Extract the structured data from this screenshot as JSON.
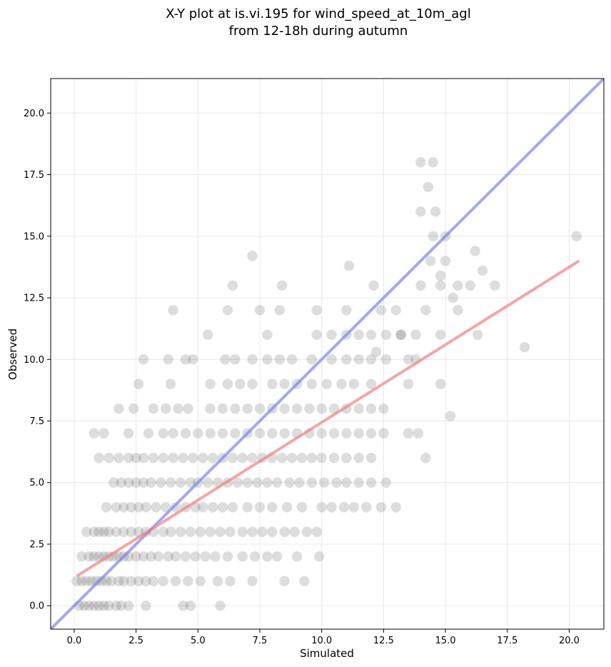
{
  "chart_data": {
    "type": "scatter",
    "title_line1": "X-Y plot at is.vi.195 for wind_speed_at_10m_agl",
    "title_line2": "from 12-18h during autumn",
    "xlabel": "Simulated",
    "ylabel": "Observed",
    "xlim": [
      -0.95,
      21.4
    ],
    "ylim": [
      -0.95,
      21.4
    ],
    "x_ticks": [
      0.0,
      2.5,
      5.0,
      7.5,
      10.0,
      12.5,
      15.0,
      17.5,
      20.0
    ],
    "y_ticks": [
      0.0,
      2.5,
      5.0,
      7.5,
      10.0,
      12.5,
      15.0,
      17.5,
      20.0
    ],
    "x_tick_labels": [
      "0.0",
      "2.5",
      "5.0",
      "7.5",
      "10.0",
      "12.5",
      "15.0",
      "17.5",
      "20.0"
    ],
    "y_tick_labels": [
      "0.0",
      "2.5",
      "5.0",
      "7.5",
      "10.0",
      "12.5",
      "15.0",
      "17.5",
      "20.0"
    ],
    "grid": true,
    "colors": {
      "points": "#555555",
      "identity_line": "#8080f0",
      "regression_line": "#f08080"
    },
    "identity_line": {
      "x": [
        -0.95,
        21.4
      ],
      "y": [
        -0.95,
        21.4
      ]
    },
    "regression_line": {
      "x": [
        0.1,
        20.4
      ],
      "y": [
        1.2,
        14.0
      ]
    },
    "points": [
      [
        0.2,
        0
      ],
      [
        0.4,
        0
      ],
      [
        0.6,
        0
      ],
      [
        0.8,
        0
      ],
      [
        1.0,
        0
      ],
      [
        1.2,
        0
      ],
      [
        1.4,
        0
      ],
      [
        1.7,
        0
      ],
      [
        1.9,
        0
      ],
      [
        2.2,
        0
      ],
      [
        2.9,
        0
      ],
      [
        4.4,
        0
      ],
      [
        4.7,
        0
      ],
      [
        5.9,
        0
      ],
      [
        0.1,
        1
      ],
      [
        0.3,
        1
      ],
      [
        0.5,
        1
      ],
      [
        0.7,
        1
      ],
      [
        0.9,
        1
      ],
      [
        1.1,
        1
      ],
      [
        1.3,
        1
      ],
      [
        1.5,
        1
      ],
      [
        1.8,
        1
      ],
      [
        2.0,
        1
      ],
      [
        2.3,
        1
      ],
      [
        2.6,
        1
      ],
      [
        2.9,
        1
      ],
      [
        3.2,
        1
      ],
      [
        3.6,
        1
      ],
      [
        4.1,
        1
      ],
      [
        4.6,
        1
      ],
      [
        5.1,
        1
      ],
      [
        5.8,
        1
      ],
      [
        6.3,
        1
      ],
      [
        7.2,
        1
      ],
      [
        8.5,
        1
      ],
      [
        9.3,
        1
      ],
      [
        0.3,
        2
      ],
      [
        0.6,
        2
      ],
      [
        0.8,
        2
      ],
      [
        1.0,
        2
      ],
      [
        1.2,
        2
      ],
      [
        1.4,
        2
      ],
      [
        1.6,
        2
      ],
      [
        1.8,
        2
      ],
      [
        2.0,
        2
      ],
      [
        2.2,
        2
      ],
      [
        2.5,
        2
      ],
      [
        2.8,
        2
      ],
      [
        3.1,
        2
      ],
      [
        3.4,
        2
      ],
      [
        3.8,
        2
      ],
      [
        4.1,
        2
      ],
      [
        4.5,
        2
      ],
      [
        4.9,
        2
      ],
      [
        5.3,
        2
      ],
      [
        5.7,
        2
      ],
      [
        6.2,
        2
      ],
      [
        6.8,
        2
      ],
      [
        7.3,
        2
      ],
      [
        7.8,
        2
      ],
      [
        8.2,
        2
      ],
      [
        9.0,
        2
      ],
      [
        9.9,
        2
      ],
      [
        0.5,
        3
      ],
      [
        0.8,
        3
      ],
      [
        1.0,
        3
      ],
      [
        1.2,
        3
      ],
      [
        1.4,
        3
      ],
      [
        1.7,
        3
      ],
      [
        2.0,
        3
      ],
      [
        2.3,
        3
      ],
      [
        2.6,
        3
      ],
      [
        2.9,
        3
      ],
      [
        3.2,
        3
      ],
      [
        3.6,
        3
      ],
      [
        3.9,
        3
      ],
      [
        4.3,
        3
      ],
      [
        4.7,
        3
      ],
      [
        5.1,
        3
      ],
      [
        5.5,
        3
      ],
      [
        5.9,
        3
      ],
      [
        6.3,
        3
      ],
      [
        6.8,
        3
      ],
      [
        7.2,
        3
      ],
      [
        7.6,
        3
      ],
      [
        8.0,
        3
      ],
      [
        8.5,
        3
      ],
      [
        8.9,
        3
      ],
      [
        9.4,
        3
      ],
      [
        9.8,
        3
      ],
      [
        1.3,
        4
      ],
      [
        1.7,
        4
      ],
      [
        2.0,
        4
      ],
      [
        2.3,
        4
      ],
      [
        2.6,
        4
      ],
      [
        2.9,
        4
      ],
      [
        3.3,
        4
      ],
      [
        3.7,
        4
      ],
      [
        4.1,
        4
      ],
      [
        4.5,
        4
      ],
      [
        4.9,
        4
      ],
      [
        5.2,
        4
      ],
      [
        5.6,
        4
      ],
      [
        6.0,
        4
      ],
      [
        6.4,
        4
      ],
      [
        7.0,
        4
      ],
      [
        7.5,
        4
      ],
      [
        8.0,
        4
      ],
      [
        8.6,
        4
      ],
      [
        9.2,
        4
      ],
      [
        10.0,
        4
      ],
      [
        10.4,
        4
      ],
      [
        10.9,
        4
      ],
      [
        11.3,
        4
      ],
      [
        11.8,
        4
      ],
      [
        12.4,
        4
      ],
      [
        13.0,
        4
      ],
      [
        1.6,
        5
      ],
      [
        1.9,
        5
      ],
      [
        2.2,
        5
      ],
      [
        2.5,
        5
      ],
      [
        2.8,
        5
      ],
      [
        3.1,
        5
      ],
      [
        3.5,
        5
      ],
      [
        3.9,
        5
      ],
      [
        4.3,
        5
      ],
      [
        4.7,
        5
      ],
      [
        5.0,
        5
      ],
      [
        5.4,
        5
      ],
      [
        5.8,
        5
      ],
      [
        6.2,
        5
      ],
      [
        6.6,
        5
      ],
      [
        7.0,
        5
      ],
      [
        7.4,
        5
      ],
      [
        7.8,
        5
      ],
      [
        8.2,
        5
      ],
      [
        8.7,
        5
      ],
      [
        9.1,
        5
      ],
      [
        9.6,
        5
      ],
      [
        10.1,
        5
      ],
      [
        10.6,
        5
      ],
      [
        11.0,
        5
      ],
      [
        11.5,
        5
      ],
      [
        12.0,
        5
      ],
      [
        12.6,
        5
      ],
      [
        1.0,
        6
      ],
      [
        1.4,
        6
      ],
      [
        1.8,
        6
      ],
      [
        2.2,
        6
      ],
      [
        2.5,
        6
      ],
      [
        2.8,
        6
      ],
      [
        3.2,
        6
      ],
      [
        3.6,
        6
      ],
      [
        4.0,
        6
      ],
      [
        4.4,
        6
      ],
      [
        4.8,
        6
      ],
      [
        5.2,
        6
      ],
      [
        5.6,
        6
      ],
      [
        6.0,
        6
      ],
      [
        6.4,
        6
      ],
      [
        6.8,
        6
      ],
      [
        7.2,
        6
      ],
      [
        7.6,
        6
      ],
      [
        8.0,
        6
      ],
      [
        8.4,
        6
      ],
      [
        8.8,
        6
      ],
      [
        9.2,
        6
      ],
      [
        9.6,
        6
      ],
      [
        10.0,
        6
      ],
      [
        10.5,
        6
      ],
      [
        11.0,
        6
      ],
      [
        11.5,
        6
      ],
      [
        12.0,
        6
      ],
      [
        14.2,
        6
      ],
      [
        0.8,
        7
      ],
      [
        1.2,
        7
      ],
      [
        2.2,
        7
      ],
      [
        3.0,
        7
      ],
      [
        3.6,
        7
      ],
      [
        4.0,
        7
      ],
      [
        4.5,
        7
      ],
      [
        5.0,
        7
      ],
      [
        5.5,
        7
      ],
      [
        6.0,
        7
      ],
      [
        6.5,
        7
      ],
      [
        7.0,
        7
      ],
      [
        7.5,
        7
      ],
      [
        8.0,
        7
      ],
      [
        8.5,
        7
      ],
      [
        9.0,
        7
      ],
      [
        9.5,
        7
      ],
      [
        10.0,
        7
      ],
      [
        10.5,
        7
      ],
      [
        11.0,
        7
      ],
      [
        11.5,
        7
      ],
      [
        12.0,
        7
      ],
      [
        12.5,
        7
      ],
      [
        13.5,
        7
      ],
      [
        13.9,
        7
      ],
      [
        1.8,
        8
      ],
      [
        2.4,
        8
      ],
      [
        3.2,
        8
      ],
      [
        3.7,
        8
      ],
      [
        4.2,
        8
      ],
      [
        4.6,
        8
      ],
      [
        5.5,
        8
      ],
      [
        6.0,
        8
      ],
      [
        6.5,
        8
      ],
      [
        7.0,
        8
      ],
      [
        7.5,
        8
      ],
      [
        8.0,
        8
      ],
      [
        8.5,
        8
      ],
      [
        9.0,
        8
      ],
      [
        9.5,
        8
      ],
      [
        10.0,
        8
      ],
      [
        10.5,
        8
      ],
      [
        11.0,
        8
      ],
      [
        11.5,
        8
      ],
      [
        12.0,
        8
      ],
      [
        12.5,
        8
      ],
      [
        15.2,
        7.7
      ],
      [
        2.6,
        9
      ],
      [
        3.9,
        9
      ],
      [
        5.5,
        9
      ],
      [
        6.2,
        9
      ],
      [
        6.7,
        9
      ],
      [
        7.2,
        9
      ],
      [
        8.0,
        9
      ],
      [
        8.5,
        9
      ],
      [
        9.0,
        9
      ],
      [
        9.6,
        9
      ],
      [
        10.2,
        9
      ],
      [
        10.8,
        9
      ],
      [
        11.3,
        9
      ],
      [
        12.0,
        9
      ],
      [
        13.5,
        9
      ],
      [
        14.8,
        9
      ],
      [
        2.8,
        10
      ],
      [
        3.8,
        10
      ],
      [
        4.5,
        10
      ],
      [
        4.8,
        10
      ],
      [
        6.1,
        10
      ],
      [
        6.5,
        10
      ],
      [
        7.2,
        10
      ],
      [
        7.8,
        10
      ],
      [
        8.3,
        10
      ],
      [
        8.8,
        10
      ],
      [
        9.6,
        10
      ],
      [
        10.4,
        10
      ],
      [
        11.0,
        10
      ],
      [
        11.5,
        10
      ],
      [
        12.0,
        10
      ],
      [
        12.6,
        10
      ],
      [
        13.5,
        10
      ],
      [
        13.8,
        10
      ],
      [
        5.4,
        11
      ],
      [
        7.8,
        11
      ],
      [
        9.8,
        11
      ],
      [
        10.4,
        11
      ],
      [
        11.0,
        11
      ],
      [
        11.5,
        11
      ],
      [
        12.0,
        11
      ],
      [
        12.6,
        11
      ],
      [
        13.2,
        11
      ],
      [
        13.8,
        11
      ],
      [
        14.8,
        11
      ],
      [
        16.3,
        11
      ],
      [
        4.0,
        12
      ],
      [
        6.2,
        12
      ],
      [
        7.5,
        12
      ],
      [
        8.3,
        12
      ],
      [
        9.8,
        12
      ],
      [
        11.0,
        12
      ],
      [
        12.4,
        12
      ],
      [
        13.0,
        12
      ],
      [
        14.2,
        12
      ],
      [
        15.5,
        12
      ],
      [
        6.4,
        13
      ],
      [
        8.4,
        13
      ],
      [
        12.1,
        13
      ],
      [
        14.0,
        13
      ],
      [
        14.8,
        13
      ],
      [
        15.5,
        13
      ],
      [
        16.0,
        13
      ],
      [
        17.0,
        13
      ],
      [
        7.2,
        14.2
      ],
      [
        11.1,
        13.8
      ],
      [
        14.4,
        14
      ],
      [
        15.0,
        14
      ],
      [
        16.2,
        14.4
      ],
      [
        16.5,
        13.6
      ],
      [
        14.5,
        15
      ],
      [
        15.0,
        15
      ],
      [
        20.3,
        15
      ],
      [
        14.0,
        16
      ],
      [
        14.6,
        16
      ],
      [
        14.3,
        17
      ],
      [
        14.0,
        18
      ],
      [
        14.5,
        18
      ],
      [
        18.2,
        10.5
      ],
      [
        15.3,
        12.5
      ],
      [
        14.8,
        13.4
      ],
      [
        13.2,
        11.0
      ],
      [
        12.2,
        10.3
      ]
    ]
  }
}
